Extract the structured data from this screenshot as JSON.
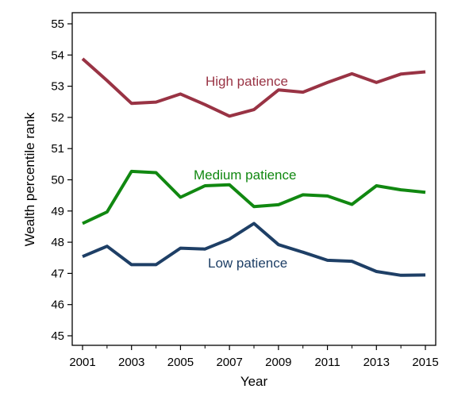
{
  "chart_data": {
    "type": "line",
    "xlabel": "Year",
    "ylabel": "Wealth percentile rank",
    "xlim": [
      2001,
      2015
    ],
    "ylim": [
      45,
      55
    ],
    "x_ticks": [
      2001,
      2003,
      2005,
      2007,
      2009,
      2011,
      2013,
      2015
    ],
    "x_minor_ticks": [
      2002,
      2004,
      2006,
      2008,
      2010,
      2012,
      2014
    ],
    "y_ticks": [
      45,
      46,
      47,
      48,
      49,
      50,
      51,
      52,
      53,
      54,
      55
    ],
    "grid": false,
    "legend": "none",
    "x": [
      2001,
      2002,
      2003,
      2004,
      2005,
      2006,
      2007,
      2008,
      2009,
      2010,
      2011,
      2012,
      2013,
      2014,
      2015
    ],
    "series": [
      {
        "name": "High patience",
        "color": "#993344",
        "values": [
          53.88,
          53.18,
          52.45,
          52.49,
          52.75,
          52.41,
          52.04,
          52.25,
          52.88,
          52.81,
          53.12,
          53.4,
          53.12,
          53.39,
          53.46
        ]
      },
      {
        "name": "Medium patience",
        "color": "#118811",
        "values": [
          48.6,
          48.97,
          50.27,
          50.23,
          49.44,
          49.81,
          49.84,
          49.14,
          49.2,
          49.52,
          49.48,
          49.21,
          49.81,
          49.68,
          49.6
        ]
      },
      {
        "name": "Low patience",
        "color": "#1e3f66",
        "values": [
          47.54,
          47.87,
          47.28,
          47.28,
          47.81,
          47.78,
          48.1,
          48.6,
          47.92,
          47.68,
          47.42,
          47.39,
          47.06,
          46.94,
          46.95
        ]
      }
    ]
  }
}
